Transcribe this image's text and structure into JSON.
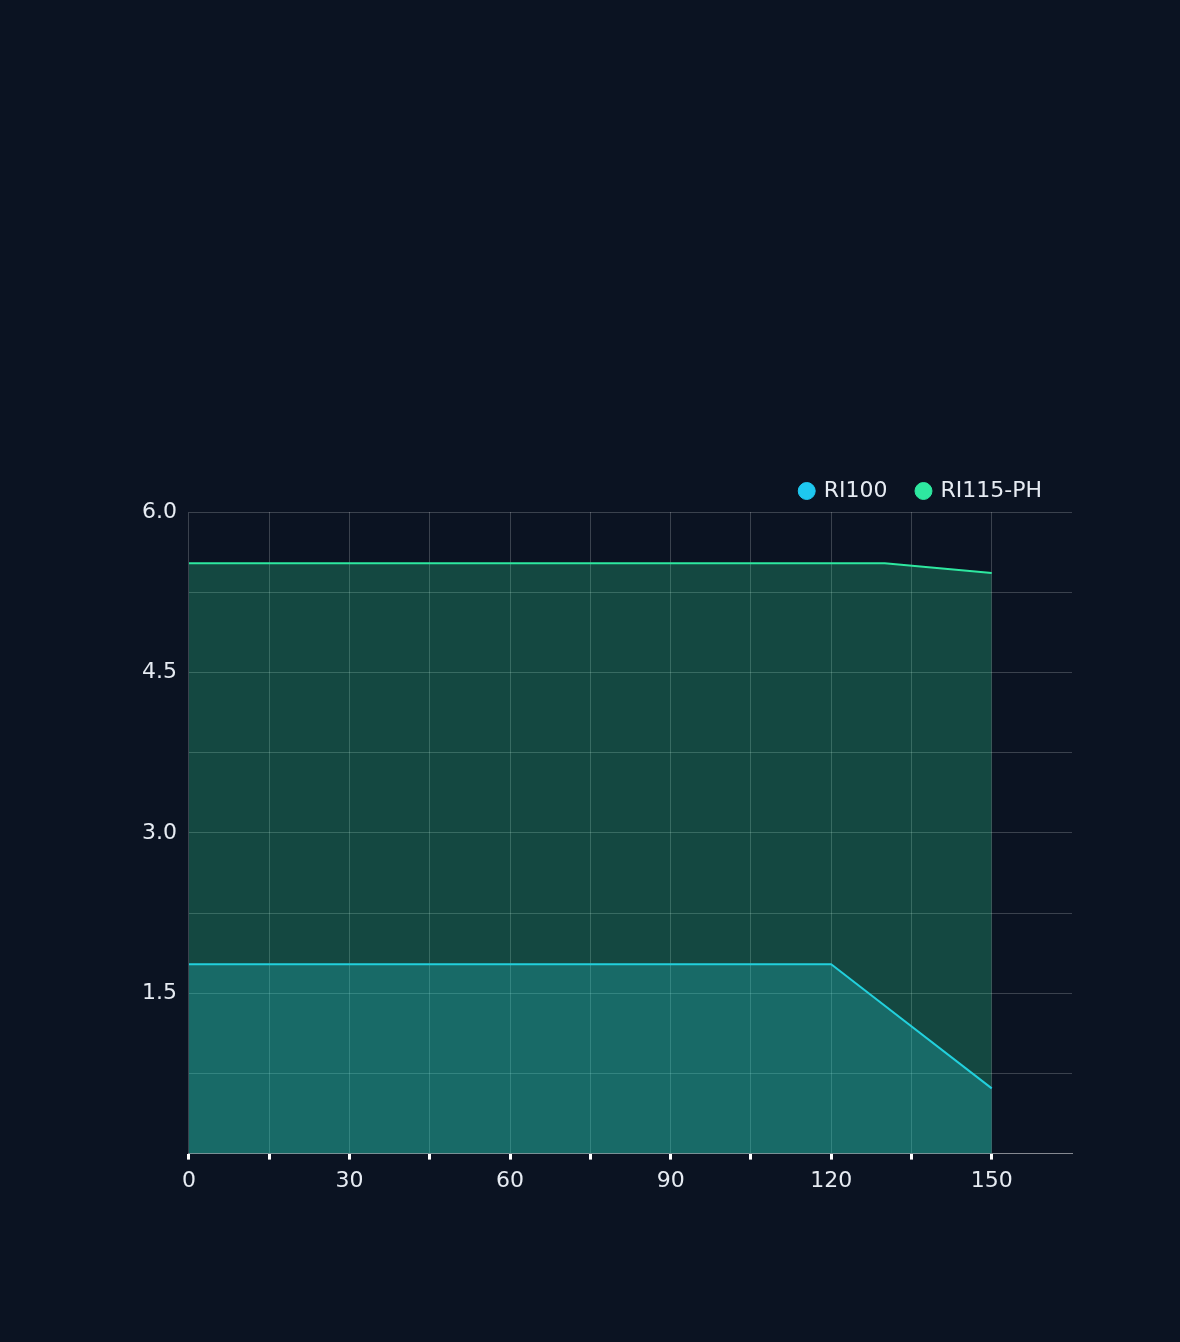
{
  "chart_data": {
    "type": "area",
    "series": [
      {
        "name": "RI100",
        "color": "#1ec8f0",
        "x": [
          0,
          120,
          150
        ],
        "values": [
          1.77,
          1.77,
          0.61
        ]
      },
      {
        "name": "RI115-PH",
        "color": "#2ee8a0",
        "x": [
          0,
          120,
          130,
          150
        ],
        "values": [
          5.52,
          5.52,
          5.52,
          5.43
        ]
      }
    ],
    "xlim": [
      0,
      165
    ],
    "xticks": [
      0,
      {
        "value": 15,
        "label": null
      },
      30,
      {
        "value": 45,
        "label": null
      },
      60,
      {
        "value": 75,
        "label": null
      },
      90,
      {
        "value": 105,
        "label": null
      },
      120,
      {
        "value": 135,
        "label": null
      },
      150
    ],
    "ylim": [
      0,
      6
    ],
    "yticks": [
      {
        "value": 0.75,
        "label": null
      },
      1.5,
      {
        "value": 2.25,
        "label": null
      },
      {
        "value": 3,
        "label": "3.0"
      },
      {
        "value": 3.75,
        "label": null
      },
      4.5,
      {
        "value": 5.25,
        "label": null
      },
      {
        "value": 6,
        "label": "6.0"
      }
    ],
    "grid": true,
    "legend": "top right",
    "line_style": "solid"
  }
}
